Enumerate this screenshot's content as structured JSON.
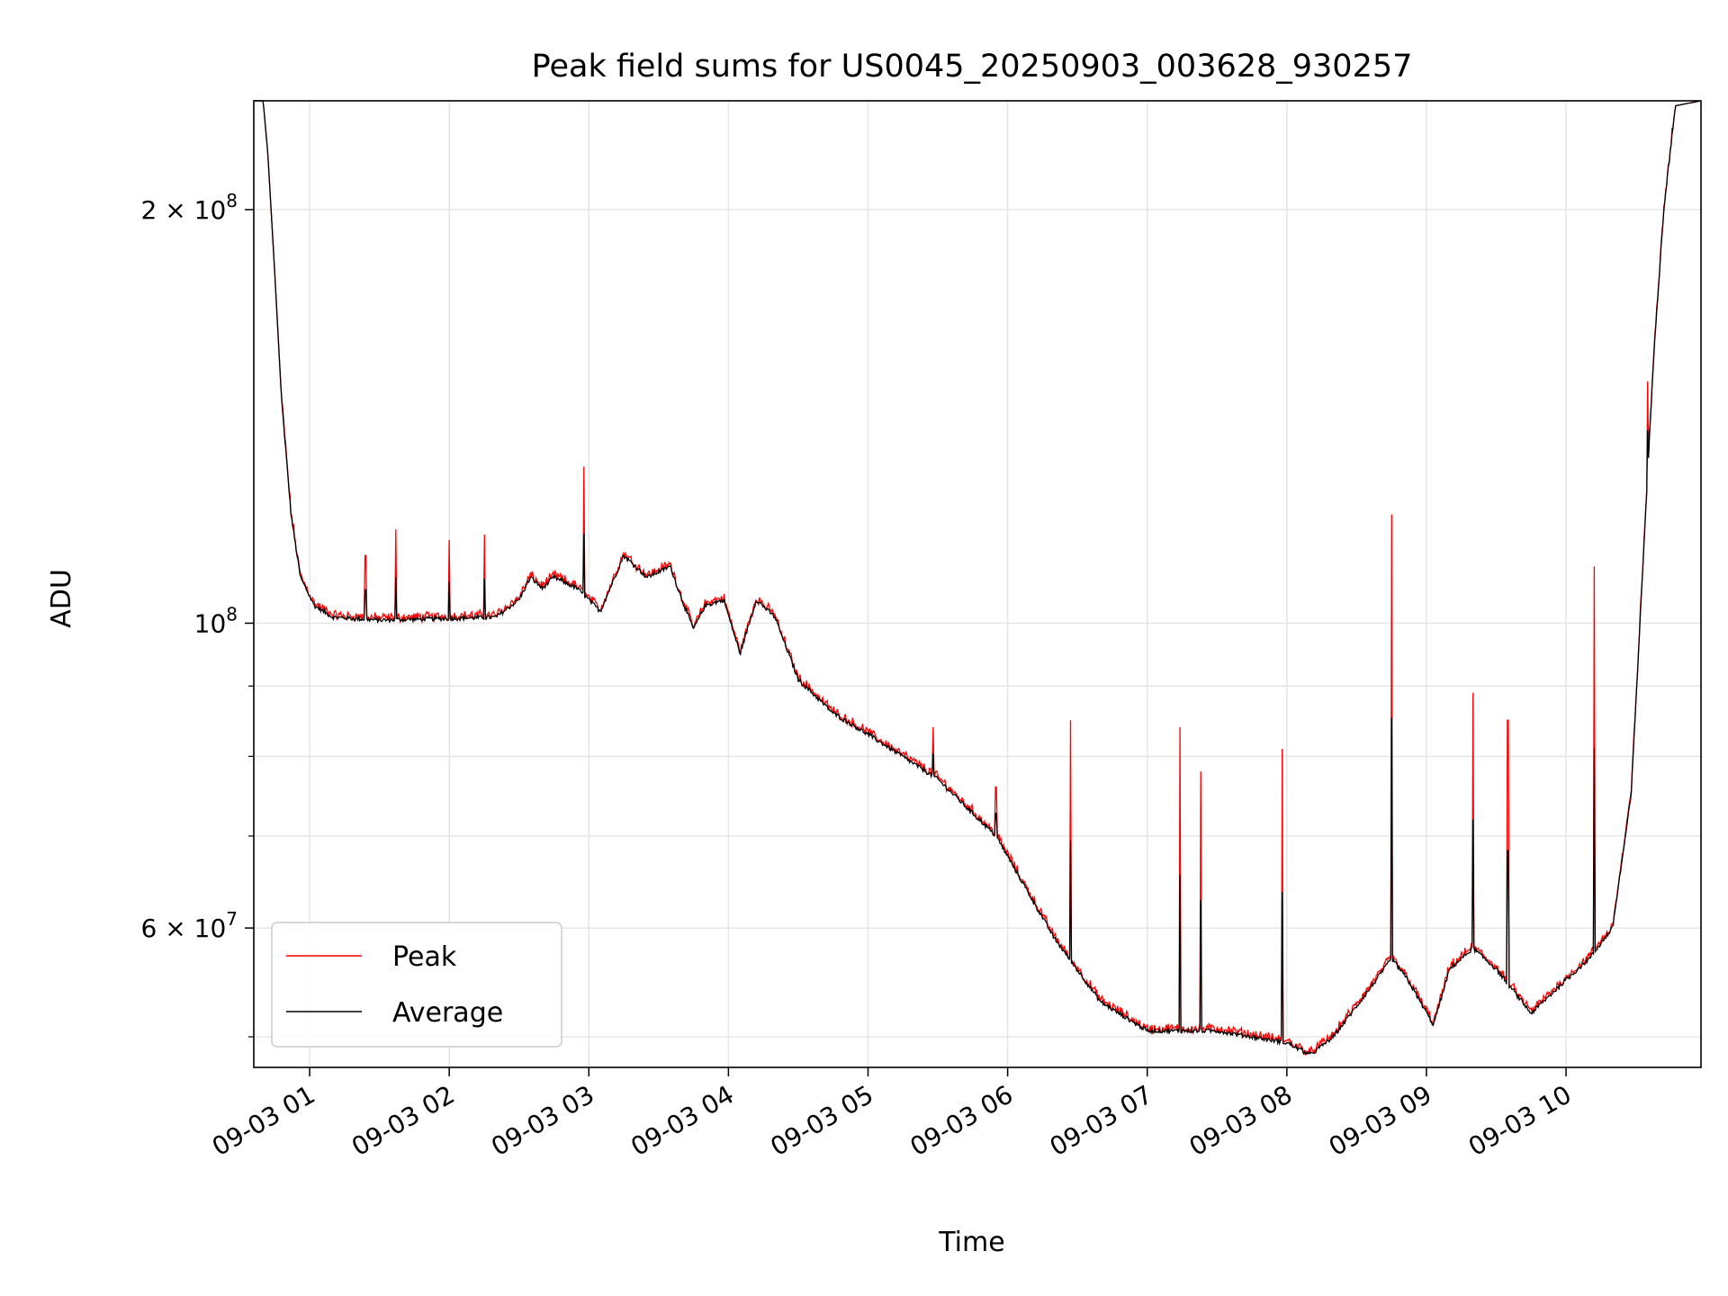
{
  "chart_data": {
    "type": "line",
    "title": "Peak field sums for US0045_20250903_003628_930257",
    "xlabel": "Time",
    "ylabel": "ADU",
    "x_axis_type": "datetime",
    "x_range": [
      "2025-09-03T00:36:00",
      "2025-09-03T10:58:00"
    ],
    "ylim": [
      47500000,
      240000000
    ],
    "y_scale": "log",
    "grid": true,
    "legend": {
      "position": "lower-left"
    },
    "x_ticks": [
      {
        "t": "2025-09-03T01:00:00",
        "label": "09-03 01"
      },
      {
        "t": "2025-09-03T02:00:00",
        "label": "09-03 02"
      },
      {
        "t": "2025-09-03T03:00:00",
        "label": "09-03 03"
      },
      {
        "t": "2025-09-03T04:00:00",
        "label": "09-03 04"
      },
      {
        "t": "2025-09-03T05:00:00",
        "label": "09-03 05"
      },
      {
        "t": "2025-09-03T06:00:00",
        "label": "09-03 06"
      },
      {
        "t": "2025-09-03T07:00:00",
        "label": "09-03 07"
      },
      {
        "t": "2025-09-03T08:00:00",
        "label": "09-03 08"
      },
      {
        "t": "2025-09-03T09:00:00",
        "label": "09-03 09"
      },
      {
        "t": "2025-09-03T10:00:00",
        "label": "09-03 10"
      }
    ],
    "y_ticks_major": [
      {
        "value": 60000000,
        "base": "6",
        "exp": "7"
      },
      {
        "value": 100000000,
        "base": "",
        "exp": "8"
      },
      {
        "value": 200000000,
        "base": "2",
        "exp": "8"
      }
    ],
    "y_ticks_minor": [
      50000000,
      70000000,
      80000000,
      90000000
    ],
    "series": [
      {
        "name": "Peak",
        "color": "#ff0000",
        "baseline": [
          [
            "2025-09-03T00:36:00",
            240000000
          ],
          [
            "2025-09-03T00:40:00",
            240000000
          ],
          [
            "2025-09-03T00:42:00",
            220000000
          ],
          [
            "2025-09-03T00:45:00",
            180000000
          ],
          [
            "2025-09-03T00:48:00",
            145000000
          ],
          [
            "2025-09-03T00:52:00",
            120000000
          ],
          [
            "2025-09-03T00:56:00",
            108000000
          ],
          [
            "2025-09-03T01:02:00",
            103000000
          ],
          [
            "2025-09-03T01:10:00",
            101000000
          ],
          [
            "2025-09-03T01:30:00",
            100500000
          ],
          [
            "2025-09-03T02:00:00",
            100800000
          ],
          [
            "2025-09-03T02:20:00",
            101000000
          ],
          [
            "2025-09-03T02:30:00",
            104000000
          ],
          [
            "2025-09-03T02:35:00",
            108000000
          ],
          [
            "2025-09-03T02:40:00",
            106000000
          ],
          [
            "2025-09-03T02:45:00",
            108000000
          ],
          [
            "2025-09-03T02:55:00",
            106000000
          ],
          [
            "2025-09-03T03:05:00",
            102000000
          ],
          [
            "2025-09-03T03:15:00",
            112000000
          ],
          [
            "2025-09-03T03:25:00",
            108000000
          ],
          [
            "2025-09-03T03:35:00",
            110000000
          ],
          [
            "2025-09-03T03:40:00",
            104000000
          ],
          [
            "2025-09-03T03:45:00",
            99000000
          ],
          [
            "2025-09-03T03:50:00",
            103000000
          ],
          [
            "2025-09-03T03:58:00",
            104000000
          ],
          [
            "2025-09-03T04:05:00",
            95000000
          ],
          [
            "2025-09-03T04:12:00",
            104000000
          ],
          [
            "2025-09-03T04:20:00",
            101000000
          ],
          [
            "2025-09-03T04:30:00",
            91000000
          ],
          [
            "2025-09-03T04:45:00",
            86000000
          ],
          [
            "2025-09-03T05:00:00",
            83000000
          ],
          [
            "2025-09-03T05:30:00",
            77000000
          ],
          [
            "2025-09-03T05:55:00",
            70000000
          ],
          [
            "2025-09-03T06:20:00",
            59000000
          ],
          [
            "2025-09-03T06:40:00",
            53000000
          ],
          [
            "2025-09-03T07:00:00",
            50500000
          ],
          [
            "2025-09-03T07:30:00",
            50500000
          ],
          [
            "2025-09-03T08:00:00",
            49500000
          ],
          [
            "2025-09-03T08:10:00",
            48500000
          ],
          [
            "2025-09-03T08:20:00",
            50000000
          ],
          [
            "2025-09-03T08:35:00",
            54000000
          ],
          [
            "2025-09-03T08:45:00",
            57000000
          ],
          [
            "2025-09-03T08:52:00",
            55000000
          ],
          [
            "2025-09-03T09:03:00",
            51000000
          ],
          [
            "2025-09-03T09:10:00",
            56000000
          ],
          [
            "2025-09-03T09:20:00",
            58000000
          ],
          [
            "2025-09-03T09:30:00",
            56000000
          ],
          [
            "2025-09-03T09:45:00",
            52000000
          ],
          [
            "2025-09-03T10:00:00",
            55000000
          ],
          [
            "2025-09-03T10:10:00",
            57000000
          ],
          [
            "2025-09-03T10:20:00",
            60000000
          ],
          [
            "2025-09-03T10:28:00",
            75000000
          ],
          [
            "2025-09-03T10:33:00",
            110000000
          ],
          [
            "2025-09-03T10:38:00",
            160000000
          ],
          [
            "2025-09-03T10:42:00",
            200000000
          ],
          [
            "2025-09-03T10:47:00",
            238000000
          ],
          [
            "2025-09-03T10:58:00",
            240000000
          ]
        ],
        "spikes": [
          [
            "2025-09-03T01:24:00",
            112000000
          ],
          [
            "2025-09-03T01:37:00",
            117000000
          ],
          [
            "2025-09-03T02:00:00",
            115000000
          ],
          [
            "2025-09-03T02:15:00",
            116000000
          ],
          [
            "2025-09-03T02:58:00",
            130000000
          ],
          [
            "2025-09-03T04:23:00",
            98000000
          ],
          [
            "2025-09-03T05:28:00",
            84000000
          ],
          [
            "2025-09-03T05:55:00",
            76000000
          ],
          [
            "2025-09-03T06:27:00",
            85000000
          ],
          [
            "2025-09-03T07:14:00",
            84000000
          ],
          [
            "2025-09-03T07:23:00",
            78000000
          ],
          [
            "2025-09-03T07:58:00",
            81000000
          ],
          [
            "2025-09-03T08:45:00",
            120000000
          ],
          [
            "2025-09-03T09:20:00",
            89000000
          ],
          [
            "2025-09-03T09:35:00",
            85000000
          ],
          [
            "2025-09-03T10:12:00",
            110000000
          ],
          [
            "2025-09-03T10:35:00",
            150000000
          ]
        ]
      },
      {
        "name": "Average",
        "color": "#000000",
        "note_same_shape": true
      }
    ]
  }
}
